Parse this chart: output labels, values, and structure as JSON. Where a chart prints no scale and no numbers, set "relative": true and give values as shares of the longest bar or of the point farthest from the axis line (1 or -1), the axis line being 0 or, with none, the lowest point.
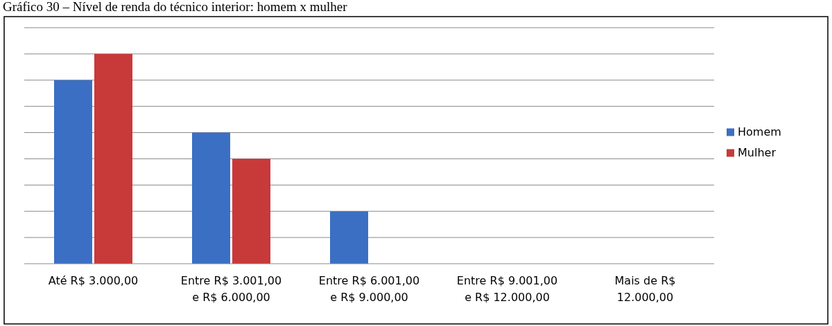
{
  "chart_data": {
    "type": "bar",
    "title": "Gráfico 30 – Nível de renda do técnico interior: homem x mulher",
    "categories": [
      "Até R$ 3.000,00",
      "Entre R$ 3.001,00 e R$ 6.000,00",
      "Entre R$ 6.001,00 e R$ 9.000,00",
      "Entre R$ 9.001,00 e R$ 12.000,00",
      "Mais de R$ 12.000,00"
    ],
    "series": [
      {
        "name": "Homem",
        "color": "#3b6fc4",
        "values": [
          0.875,
          0.625,
          0.25,
          0,
          0
        ]
      },
      {
        "name": "Mulher",
        "color": "#c8393a",
        "values": [
          1,
          0.5,
          0,
          0,
          0
        ]
      }
    ],
    "relative": true,
    "grid": "y",
    "legend": "right"
  }
}
